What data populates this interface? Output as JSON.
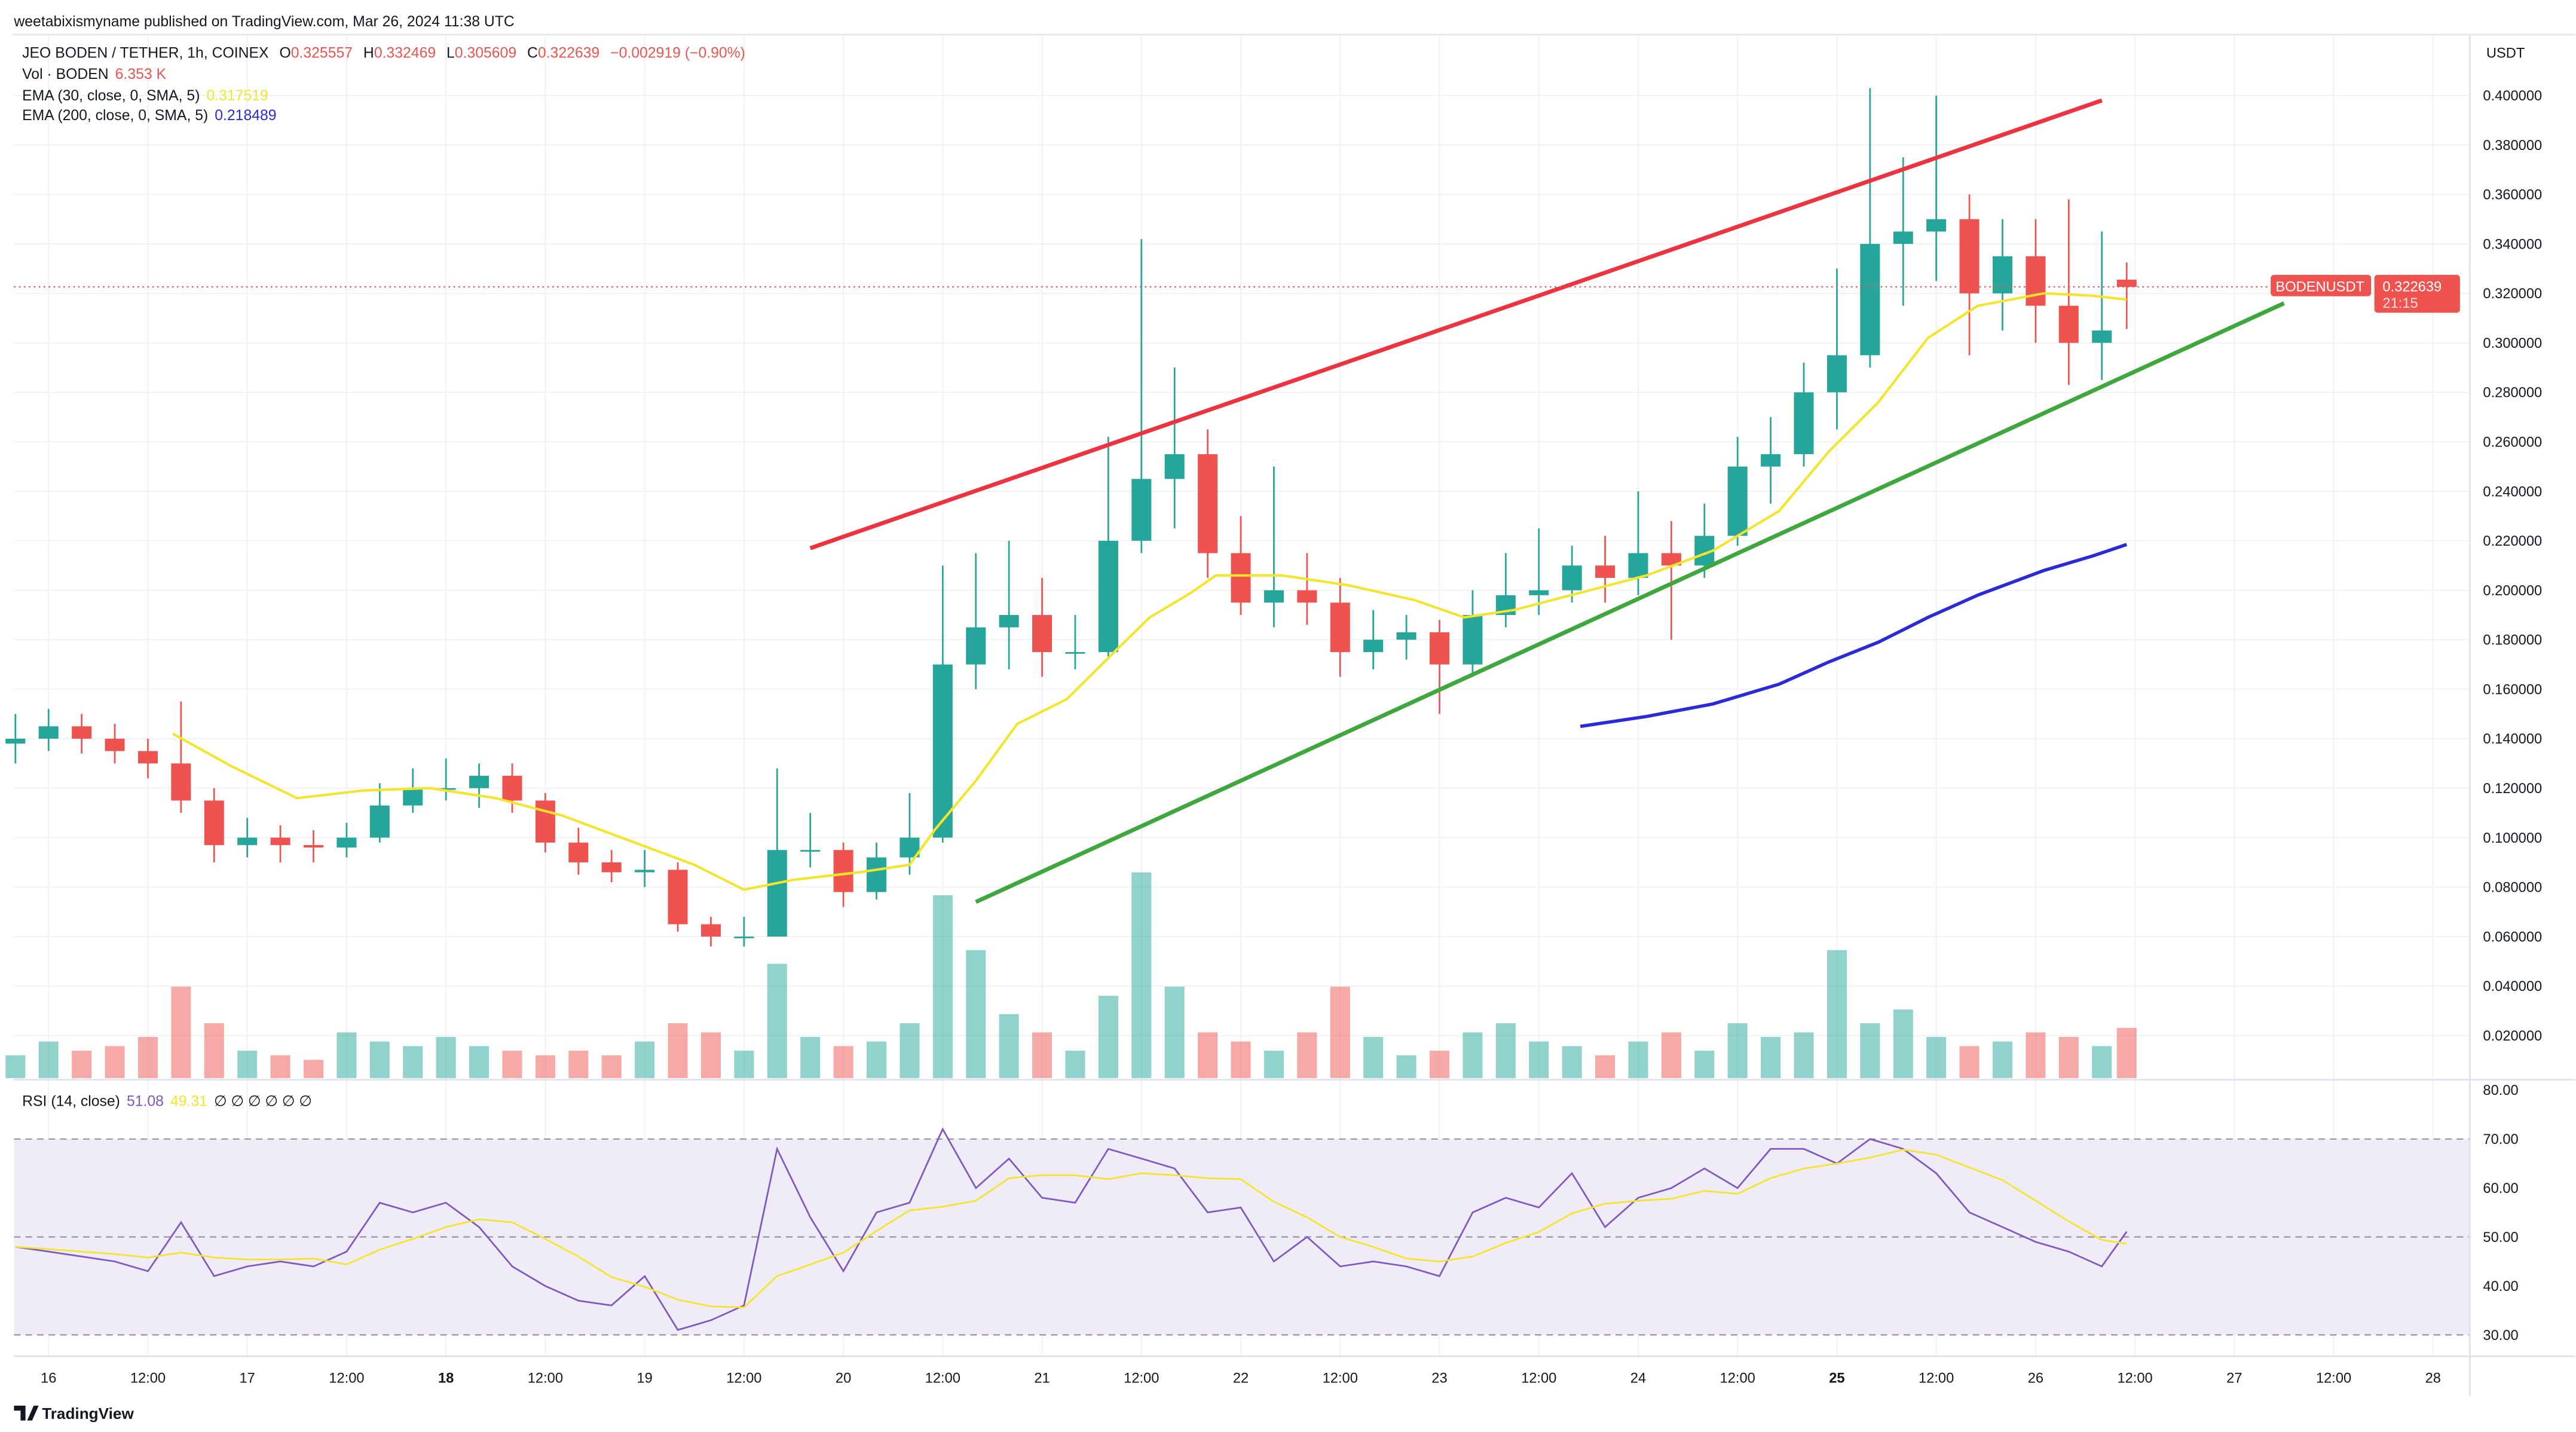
{
  "header": {
    "publisher": "weetabixismyname published on TradingView.com, Mar 26, 2024 11:38 UTC",
    "symbol": "JEO BODEN / TETHER, 1h, COINEX",
    "o_label": "O",
    "o": "0.325557",
    "h_label": "H",
    "h": "0.332469",
    "l_label": "L",
    "l": "0.305609",
    "c_label": "C",
    "c": "0.322639",
    "change": "−0.002919 (−0.90%)",
    "vol_label": "Vol · BODEN",
    "vol": "6.353 K",
    "ema30_label": "EMA (30, close, 0, SMA, 5)",
    "ema30": "0.317519",
    "ema200_label": "EMA (200, close, 0, SMA, 5)",
    "ema200": "0.218489"
  },
  "rsi_legend": {
    "label": "RSI (14, close)",
    "value": "51.08",
    "ma": "49.31",
    "empty": "∅ ∅ ∅ ∅ ∅ ∅"
  },
  "price_badge": {
    "symbol": "BODENUSDT",
    "price": "0.322639",
    "countdown": "21:15"
  },
  "currency": "USDT",
  "footer": {
    "logo": "TradingView"
  },
  "colors": {
    "up": "#26a69a",
    "down": "#ef5350",
    "ema30": "#f5e52a",
    "ema200": "#2a2ad8",
    "rsi": "#7e57c2",
    "rsi_ma": "#f5e52a",
    "trend_upper": "#ee3340",
    "trend_lower": "#3ea83e",
    "rsi_band": "#efecf8"
  },
  "chart_data": [
    {
      "type": "candlestick",
      "pane": "price",
      "ylim": [
        0.0,
        0.41
      ],
      "yticks": [
        "0.400000",
        "0.380000",
        "0.360000",
        "0.340000",
        "0.320000",
        "0.300000",
        "0.280000",
        "0.260000",
        "0.240000",
        "0.220000",
        "0.200000",
        "0.180000",
        "0.160000",
        "0.140000",
        "0.120000",
        "0.100000",
        "0.080000",
        "0.060000",
        "0.040000",
        "0.020000"
      ],
      "xticks": [
        {
          "label": "16",
          "bold": false,
          "t": "2024-03-16 00:00"
        },
        {
          "label": "12:00",
          "bold": false,
          "t": "2024-03-16 12:00"
        },
        {
          "label": "17",
          "bold": false,
          "t": "2024-03-17 00:00"
        },
        {
          "label": "12:00",
          "bold": false,
          "t": "2024-03-17 12:00"
        },
        {
          "label": "18",
          "bold": true,
          "t": "2024-03-18 00:00"
        },
        {
          "label": "12:00",
          "bold": false,
          "t": "2024-03-18 12:00"
        },
        {
          "label": "19",
          "bold": false,
          "t": "2024-03-19 00:00"
        },
        {
          "label": "12:00",
          "bold": false,
          "t": "2024-03-19 12:00"
        },
        {
          "label": "20",
          "bold": false,
          "t": "2024-03-20 00:00"
        },
        {
          "label": "12:00",
          "bold": false,
          "t": "2024-03-20 12:00"
        },
        {
          "label": "21",
          "bold": false,
          "t": "2024-03-21 00:00"
        },
        {
          "label": "12:00",
          "bold": false,
          "t": "2024-03-21 12:00"
        },
        {
          "label": "22",
          "bold": false,
          "t": "2024-03-22 00:00"
        },
        {
          "label": "12:00",
          "bold": false,
          "t": "2024-03-22 12:00"
        },
        {
          "label": "23",
          "bold": false,
          "t": "2024-03-23 00:00"
        },
        {
          "label": "12:00",
          "bold": false,
          "t": "2024-03-23 12:00"
        },
        {
          "label": "24",
          "bold": false,
          "t": "2024-03-24 00:00"
        },
        {
          "label": "12:00",
          "bold": false,
          "t": "2024-03-24 12:00"
        },
        {
          "label": "25",
          "bold": true,
          "t": "2024-03-25 00:00"
        },
        {
          "label": "12:00",
          "bold": false,
          "t": "2024-03-25 12:00"
        },
        {
          "label": "26",
          "bold": false,
          "t": "2024-03-26 00:00"
        },
        {
          "label": "12:00",
          "bold": false,
          "t": "2024-03-26 12:00"
        },
        {
          "label": "27",
          "bold": false,
          "t": "2024-03-27 00:00"
        },
        {
          "label": "12:00",
          "bold": false,
          "t": "2024-03-27 12:00"
        },
        {
          "label": "28",
          "bold": false,
          "t": "2024-03-28 00:00"
        }
      ],
      "candles": [
        [
          "2024-03-15 20:00",
          0.138,
          0.15,
          0.13,
          0.14
        ],
        [
          "2024-03-16 00:00",
          0.14,
          0.152,
          0.135,
          0.145
        ],
        [
          "2024-03-16 04:00",
          0.145,
          0.15,
          0.134,
          0.14
        ],
        [
          "2024-03-16 08:00",
          0.14,
          0.146,
          0.13,
          0.135
        ],
        [
          "2024-03-16 12:00",
          0.135,
          0.14,
          0.124,
          0.13
        ],
        [
          "2024-03-16 16:00",
          0.13,
          0.155,
          0.11,
          0.115
        ],
        [
          "2024-03-16 20:00",
          0.115,
          0.12,
          0.09,
          0.097
        ],
        [
          "2024-03-17 00:00",
          0.097,
          0.108,
          0.092,
          0.1
        ],
        [
          "2024-03-17 04:00",
          0.1,
          0.105,
          0.09,
          0.097
        ],
        [
          "2024-03-17 08:00",
          0.097,
          0.103,
          0.09,
          0.096
        ],
        [
          "2024-03-17 12:00",
          0.096,
          0.106,
          0.092,
          0.1
        ],
        [
          "2024-03-17 16:00",
          0.1,
          0.122,
          0.098,
          0.113
        ],
        [
          "2024-03-17 20:00",
          0.113,
          0.128,
          0.11,
          0.12
        ],
        [
          "2024-03-18 00:00",
          0.12,
          0.132,
          0.115,
          0.12
        ],
        [
          "2024-03-18 04:00",
          0.12,
          0.13,
          0.112,
          0.125
        ],
        [
          "2024-03-18 08:00",
          0.125,
          0.13,
          0.11,
          0.115
        ],
        [
          "2024-03-18 12:00",
          0.115,
          0.118,
          0.094,
          0.098
        ],
        [
          "2024-03-18 16:00",
          0.098,
          0.104,
          0.085,
          0.09
        ],
        [
          "2024-03-18 20:00",
          0.09,
          0.095,
          0.082,
          0.086
        ],
        [
          "2024-03-19 00:00",
          0.086,
          0.095,
          0.08,
          0.087
        ],
        [
          "2024-03-19 04:00",
          0.087,
          0.09,
          0.062,
          0.065
        ],
        [
          "2024-03-19 08:00",
          0.065,
          0.068,
          0.056,
          0.06
        ],
        [
          "2024-03-19 12:00",
          0.06,
          0.068,
          0.056,
          0.06
        ],
        [
          "2024-03-19 16:00",
          0.06,
          0.128,
          0.06,
          0.095
        ],
        [
          "2024-03-19 20:00",
          0.095,
          0.11,
          0.088,
          0.095
        ],
        [
          "2024-03-20 00:00",
          0.095,
          0.098,
          0.072,
          0.078
        ],
        [
          "2024-03-20 04:00",
          0.078,
          0.098,
          0.075,
          0.092
        ],
        [
          "2024-03-20 08:00",
          0.092,
          0.118,
          0.085,
          0.1
        ],
        [
          "2024-03-20 12:00",
          0.1,
          0.21,
          0.098,
          0.17
        ],
        [
          "2024-03-20 16:00",
          0.17,
          0.215,
          0.16,
          0.185
        ],
        [
          "2024-03-20 20:00",
          0.185,
          0.22,
          0.168,
          0.19
        ],
        [
          "2024-03-21 00:00",
          0.19,
          0.205,
          0.165,
          0.175
        ],
        [
          "2024-03-21 04:00",
          0.175,
          0.19,
          0.168,
          0.175
        ],
        [
          "2024-03-21 08:00",
          0.175,
          0.262,
          0.172,
          0.22
        ],
        [
          "2024-03-21 12:00",
          0.22,
          0.342,
          0.215,
          0.245
        ],
        [
          "2024-03-21 16:00",
          0.245,
          0.29,
          0.225,
          0.255
        ],
        [
          "2024-03-21 20:00",
          0.255,
          0.265,
          0.205,
          0.215
        ],
        [
          "2024-03-22 00:00",
          0.215,
          0.23,
          0.19,
          0.195
        ],
        [
          "2024-03-22 04:00",
          0.195,
          0.25,
          0.185,
          0.2
        ],
        [
          "2024-03-22 08:00",
          0.2,
          0.215,
          0.186,
          0.195
        ],
        [
          "2024-03-22 12:00",
          0.195,
          0.205,
          0.165,
          0.175
        ],
        [
          "2024-03-22 16:00",
          0.175,
          0.192,
          0.168,
          0.18
        ],
        [
          "2024-03-22 20:00",
          0.18,
          0.19,
          0.172,
          0.183
        ],
        [
          "2024-03-23 00:00",
          0.183,
          0.188,
          0.15,
          0.17
        ],
        [
          "2024-03-23 04:00",
          0.17,
          0.2,
          0.165,
          0.19
        ],
        [
          "2024-03-23 08:00",
          0.19,
          0.215,
          0.185,
          0.198
        ],
        [
          "2024-03-23 12:00",
          0.198,
          0.225,
          0.19,
          0.2
        ],
        [
          "2024-03-23 16:00",
          0.2,
          0.218,
          0.195,
          0.21
        ],
        [
          "2024-03-23 20:00",
          0.21,
          0.222,
          0.195,
          0.205
        ],
        [
          "2024-03-24 00:00",
          0.205,
          0.24,
          0.198,
          0.215
        ],
        [
          "2024-03-24 04:00",
          0.215,
          0.228,
          0.18,
          0.21
        ],
        [
          "2024-03-24 08:00",
          0.21,
          0.235,
          0.205,
          0.222
        ],
        [
          "2024-03-24 12:00",
          0.222,
          0.262,
          0.218,
          0.25
        ],
        [
          "2024-03-24 16:00",
          0.25,
          0.27,
          0.235,
          0.255
        ],
        [
          "2024-03-24 20:00",
          0.255,
          0.292,
          0.25,
          0.28
        ],
        [
          "2024-03-25 00:00",
          0.28,
          0.33,
          0.265,
          0.295
        ],
        [
          "2024-03-25 04:00",
          0.295,
          0.403,
          0.29,
          0.34
        ],
        [
          "2024-03-25 08:00",
          0.34,
          0.375,
          0.315,
          0.345
        ],
        [
          "2024-03-25 12:00",
          0.345,
          0.4,
          0.325,
          0.35
        ],
        [
          "2024-03-25 16:00",
          0.35,
          0.36,
          0.295,
          0.32
        ],
        [
          "2024-03-25 20:00",
          0.32,
          0.35,
          0.305,
          0.335
        ],
        [
          "2024-03-26 00:00",
          0.335,
          0.35,
          0.3,
          0.315
        ],
        [
          "2024-03-26 04:00",
          0.315,
          0.358,
          0.283,
          0.3
        ],
        [
          "2024-03-26 08:00",
          0.3,
          0.345,
          0.285,
          0.305
        ],
        [
          "2024-03-26 11:00",
          0.325557,
          0.332469,
          0.305609,
          0.322639
        ]
      ],
      "volume": [
        5,
        8,
        6,
        7,
        9,
        20,
        12,
        6,
        5,
        4,
        10,
        8,
        7,
        9,
        7,
        6,
        5,
        6,
        5,
        8,
        12,
        10,
        6,
        25,
        9,
        7,
        8,
        12,
        40,
        28,
        14,
        10,
        6,
        18,
        45,
        20,
        10,
        8,
        6,
        10,
        20,
        9,
        5,
        6,
        10,
        12,
        8,
        7,
        5,
        8,
        10,
        6,
        12,
        9,
        10,
        28,
        12,
        15,
        9,
        7,
        8,
        10,
        9,
        7,
        11
      ],
      "series": [
        {
          "name": "EMA (30, close, 0, SMA, 5)",
          "color": "#f5e52a",
          "points": [
            [
              "2024-03-16 15:00",
              0.142
            ],
            [
              "2024-03-16 22:00",
              0.129
            ],
            [
              "2024-03-17 06:00",
              0.116
            ],
            [
              "2024-03-17 14:00",
              0.119
            ],
            [
              "2024-03-17 22:00",
              0.12
            ],
            [
              "2024-03-18 06:00",
              0.116
            ],
            [
              "2024-03-18 14:00",
              0.109
            ],
            [
              "2024-03-18 22:00",
              0.099
            ],
            [
              "2024-03-19 06:00",
              0.089
            ],
            [
              "2024-03-19 12:00",
              0.079
            ],
            [
              "2024-03-19 18:00",
              0.083
            ],
            [
              "2024-03-20 02:00",
              0.086
            ],
            [
              "2024-03-20 08:00",
              0.089
            ],
            [
              "2024-03-20 11:00",
              0.103
            ],
            [
              "2024-03-20 16:00",
              0.123
            ],
            [
              "2024-03-20 21:00",
              0.146
            ],
            [
              "2024-03-21 03:00",
              0.156
            ],
            [
              "2024-03-21 09:00",
              0.176
            ],
            [
              "2024-03-21 13:00",
              0.189
            ],
            [
              "2024-03-21 18:00",
              0.199
            ],
            [
              "2024-03-21 21:00",
              0.206
            ],
            [
              "2024-03-22 05:00",
              0.206
            ],
            [
              "2024-03-22 13:00",
              0.202
            ],
            [
              "2024-03-22 21:00",
              0.196
            ],
            [
              "2024-03-23 03:00",
              0.189
            ],
            [
              "2024-03-23 09:00",
              0.192
            ],
            [
              "2024-03-23 17:00",
              0.199
            ],
            [
              "2024-03-24 01:00",
              0.206
            ],
            [
              "2024-03-24 09:00",
              0.216
            ],
            [
              "2024-03-24 17:00",
              0.232
            ],
            [
              "2024-03-24 23:00",
              0.256
            ],
            [
              "2024-03-25 05:00",
              0.276
            ],
            [
              "2024-03-25 11:00",
              0.302
            ],
            [
              "2024-03-25 17:00",
              0.315
            ],
            [
              "2024-03-26 01:00",
              0.32
            ],
            [
              "2024-03-26 07:00",
              0.319
            ],
            [
              "2024-03-26 11:00",
              0.317519
            ]
          ]
        },
        {
          "name": "EMA (200, close, 0, SMA, 5)",
          "color": "#2a2ad8",
          "points": [
            [
              "2024-03-23 17:00",
              0.145
            ],
            [
              "2024-03-24 01:00",
              0.149
            ],
            [
              "2024-03-24 09:00",
              0.154
            ],
            [
              "2024-03-24 17:00",
              0.162
            ],
            [
              "2024-03-24 23:00",
              0.171
            ],
            [
              "2024-03-25 05:00",
              0.179
            ],
            [
              "2024-03-25 11:00",
              0.189
            ],
            [
              "2024-03-25 17:00",
              0.198
            ],
            [
              "2024-03-26 01:00",
              0.208
            ],
            [
              "2024-03-26 07:00",
              0.214
            ],
            [
              "2024-03-26 11:00",
              0.218489
            ]
          ]
        }
      ],
      "trendlines": [
        {
          "color": "#ee3340",
          "from": [
            "2024-03-19 20:00",
            0.217
          ],
          "to": [
            "2024-03-26 08:00",
            0.398
          ]
        },
        {
          "color": "#3ea83e",
          "from": [
            "2024-03-20 16:00",
            0.074
          ],
          "to": [
            "2024-03-27 06:00",
            0.316
          ]
        }
      ],
      "last_price": 0.322639
    },
    {
      "type": "line",
      "pane": "rsi",
      "ylim": [
        27,
        82
      ],
      "yticks": [
        "80.00",
        "70.00",
        "60.00",
        "50.00",
        "40.00",
        "30.00"
      ],
      "band": [
        30,
        70
      ],
      "midline": 50,
      "rsi": [
        48,
        47,
        46,
        45,
        43,
        53,
        42,
        44,
        45,
        44,
        47,
        57,
        55,
        57,
        52,
        44,
        40,
        37,
        36,
        42,
        31,
        33,
        36,
        68,
        54,
        43,
        55,
        57,
        72,
        60,
        66,
        58,
        57,
        68,
        66,
        64,
        55,
        56,
        45,
        50,
        44,
        45,
        44,
        42,
        55,
        58,
        56,
        63,
        52,
        58,
        60,
        64,
        60,
        68,
        68,
        65,
        70,
        68,
        63,
        55,
        52,
        49,
        47,
        44,
        51.08
      ]
    }
  ]
}
